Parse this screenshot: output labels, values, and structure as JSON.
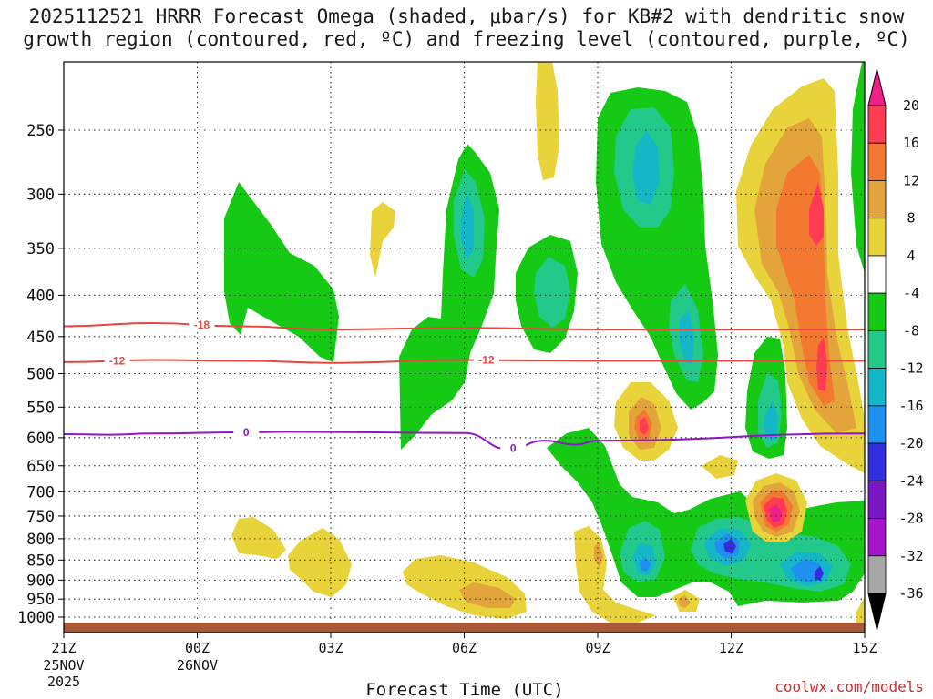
{
  "title": {
    "line1": "2025112521 HRRR Forecast Omega (shaded, μbar/s) for KB#2 with dendritic snow",
    "line2": "growth region (contoured, red, ºC) and freezing level (contoured, purple, ºC)"
  },
  "xlabel": "Forecast Time (UTC)",
  "credit": "coolwx.com/models",
  "time_ticks": [
    {
      "label": "21Z",
      "sub": [
        "25NOV",
        "2025"
      ]
    },
    {
      "label": "00Z",
      "sub": [
        "26NOV"
      ]
    },
    {
      "label": "03Z",
      "sub": []
    },
    {
      "label": "06Z",
      "sub": []
    },
    {
      "label": "09Z",
      "sub": []
    },
    {
      "label": "12Z",
      "sub": []
    },
    {
      "label": "15Z",
      "sub": []
    }
  ],
  "chart_data": {
    "type": "heatmap",
    "x_hours": [
      0,
      18
    ],
    "y_levels_hpa": [
      250,
      300,
      350,
      400,
      450,
      500,
      550,
      600,
      650,
      700,
      750,
      800,
      850,
      900,
      950,
      1000
    ],
    "ylim_hpa": [
      200,
      1025
    ],
    "colorbar": {
      "ticks": [
        20,
        16,
        12,
        8,
        4,
        -4,
        -8,
        -12,
        -16,
        -20,
        -24,
        -28,
        -32,
        -36
      ],
      "bins": [
        {
          "lo": 16,
          "hi": 20,
          "color": "#ff3c52"
        },
        {
          "lo": 12,
          "hi": 16,
          "color": "#f2792f"
        },
        {
          "lo": 8,
          "hi": 12,
          "color": "#e3a53b"
        },
        {
          "lo": 4,
          "hi": 8,
          "color": "#e9d33a"
        },
        {
          "lo": -4,
          "hi": 4,
          "color": "#ffffff"
        },
        {
          "lo": -8,
          "hi": -4,
          "color": "#15c915"
        },
        {
          "lo": -12,
          "hi": -8,
          "color": "#22c98b"
        },
        {
          "lo": -16,
          "hi": -12,
          "color": "#15b6c8"
        },
        {
          "lo": -20,
          "hi": -16,
          "color": "#1f8ff0"
        },
        {
          "lo": -24,
          "hi": -20,
          "color": "#2f2fde"
        },
        {
          "lo": -28,
          "hi": -24,
          "color": "#7a16c6"
        },
        {
          "lo": -32,
          "hi": -28,
          "color": "#a615c9"
        },
        {
          "lo": -36,
          "hi": -32,
          "color": "#a7a7a7"
        }
      ],
      "top_arrow_color": "#ee1f8a",
      "bottom_arrow_color": "#000000"
    },
    "contours": [
      {
        "label": "-18",
        "color": "#e8473f",
        "points": [
          [
            0,
            437
          ],
          [
            2,
            433
          ],
          [
            4,
            437
          ],
          [
            6,
            441
          ],
          [
            9,
            439
          ],
          [
            12,
            441
          ],
          [
            18,
            441
          ]
        ]
      },
      {
        "label": "-12",
        "color": "#e8473f",
        "points": [
          [
            0,
            484
          ],
          [
            2,
            481
          ],
          [
            4,
            482
          ],
          [
            6,
            485
          ],
          [
            9,
            481
          ],
          [
            12,
            482
          ],
          [
            18,
            482
          ]
        ]
      },
      {
        "label": "0",
        "color": "#8f16c6",
        "points": [
          [
            0,
            594
          ],
          [
            1,
            595
          ],
          [
            2,
            593
          ],
          [
            4,
            591
          ],
          [
            5,
            590
          ],
          [
            9,
            592
          ],
          [
            10,
            620
          ],
          [
            10.8,
            605
          ],
          [
            11.5,
            612
          ],
          [
            12,
            605
          ],
          [
            18,
            593
          ]
        ]
      }
    ],
    "ground_color": "#a65a35"
  }
}
